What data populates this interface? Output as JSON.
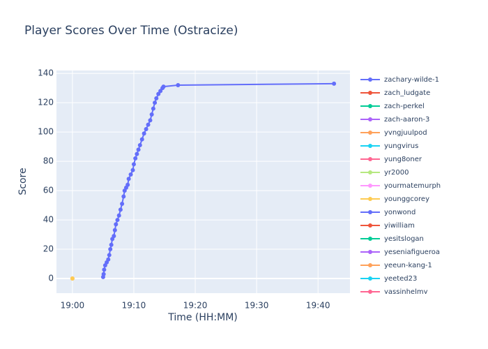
{
  "chart_data": {
    "type": "line",
    "title": "Player Scores Over Time (Ostracize)",
    "x_label": "Time (HH:MM)",
    "y_label": "Score",
    "xlim": [
      "18:57:24",
      "19:45:12"
    ],
    "xticks": [
      "19:00",
      "19:10",
      "19:20",
      "19:30",
      "19:40"
    ],
    "ylim": [
      -10,
      142
    ],
    "yticks": [
      0,
      20,
      40,
      60,
      80,
      100,
      120,
      140
    ],
    "grid": true,
    "legend": "right",
    "series": [
      {
        "name": "zachary-wilde-1",
        "color": "#636efa",
        "x": [
          "19:05:00",
          "19:05:05",
          "19:05:10",
          "19:05:20",
          "19:05:35",
          "19:05:50",
          "19:06:00",
          "19:06:10",
          "19:06:20",
          "19:06:30",
          "19:06:45",
          "19:06:55",
          "19:07:05",
          "19:07:20",
          "19:07:35",
          "19:07:50",
          "19:08:05",
          "19:08:20",
          "19:08:30",
          "19:08:45",
          "19:09:00",
          "19:09:10",
          "19:09:30",
          "19:09:50",
          "19:10:00",
          "19:10:15",
          "19:10:30",
          "19:10:45",
          "19:11:00",
          "19:11:20",
          "19:11:40",
          "19:12:00",
          "19:12:20",
          "19:12:40",
          "19:12:55",
          "19:13:10",
          "19:13:25",
          "19:13:40",
          "19:14:00",
          "19:14:20",
          "19:14:40",
          "19:14:50",
          "19:17:12",
          "19:42:36"
        ],
        "values": [
          1,
          3,
          6,
          9,
          11,
          13,
          16,
          20,
          23,
          27,
          29,
          33,
          37,
          40,
          43,
          47,
          51,
          56,
          60,
          62,
          64,
          68,
          71,
          74,
          78,
          82,
          85,
          88,
          91,
          95,
          99,
          102,
          105,
          108,
          112,
          116,
          120,
          123,
          126,
          128,
          130,
          131,
          132,
          133
        ]
      },
      {
        "name": "zach_ludgate",
        "color": "#EF553B",
        "x": [],
        "values": []
      },
      {
        "name": "zach-perkel",
        "color": "#00cc96",
        "x": [],
        "values": []
      },
      {
        "name": "zach-aaron-3",
        "color": "#ab63fa",
        "x": [],
        "values": []
      },
      {
        "name": "yvngjuulpod",
        "color": "#FFA15A",
        "x": [
          "19:00:00"
        ],
        "values": [
          0
        ]
      },
      {
        "name": "yungvirus",
        "color": "#19d3f3",
        "x": [],
        "values": []
      },
      {
        "name": "yung8oner",
        "color": "#FF6692",
        "x": [],
        "values": []
      },
      {
        "name": "yr2000",
        "color": "#B6E880",
        "x": [],
        "values": []
      },
      {
        "name": "yourmatemurph",
        "color": "#FF97FF",
        "x": [],
        "values": []
      },
      {
        "name": "younggcorey",
        "color": "#FECB52",
        "x": [
          "19:00:00"
        ],
        "values": [
          0
        ]
      },
      {
        "name": "yonwond",
        "color": "#636efa",
        "x": [],
        "values": []
      },
      {
        "name": "yiwilliam",
        "color": "#EF553B",
        "x": [],
        "values": []
      },
      {
        "name": "yesitslogan",
        "color": "#00cc96",
        "x": [],
        "values": []
      },
      {
        "name": "yeseniafigueroa",
        "color": "#ab63fa",
        "x": [],
        "values": []
      },
      {
        "name": "yeeun-kang-1",
        "color": "#FFA15A",
        "x": [],
        "values": []
      },
      {
        "name": "yeeted23",
        "color": "#19d3f3",
        "x": [],
        "values": []
      },
      {
        "name": "yassinhelmy",
        "color": "#FF6692",
        "x": [],
        "values": []
      }
    ]
  }
}
